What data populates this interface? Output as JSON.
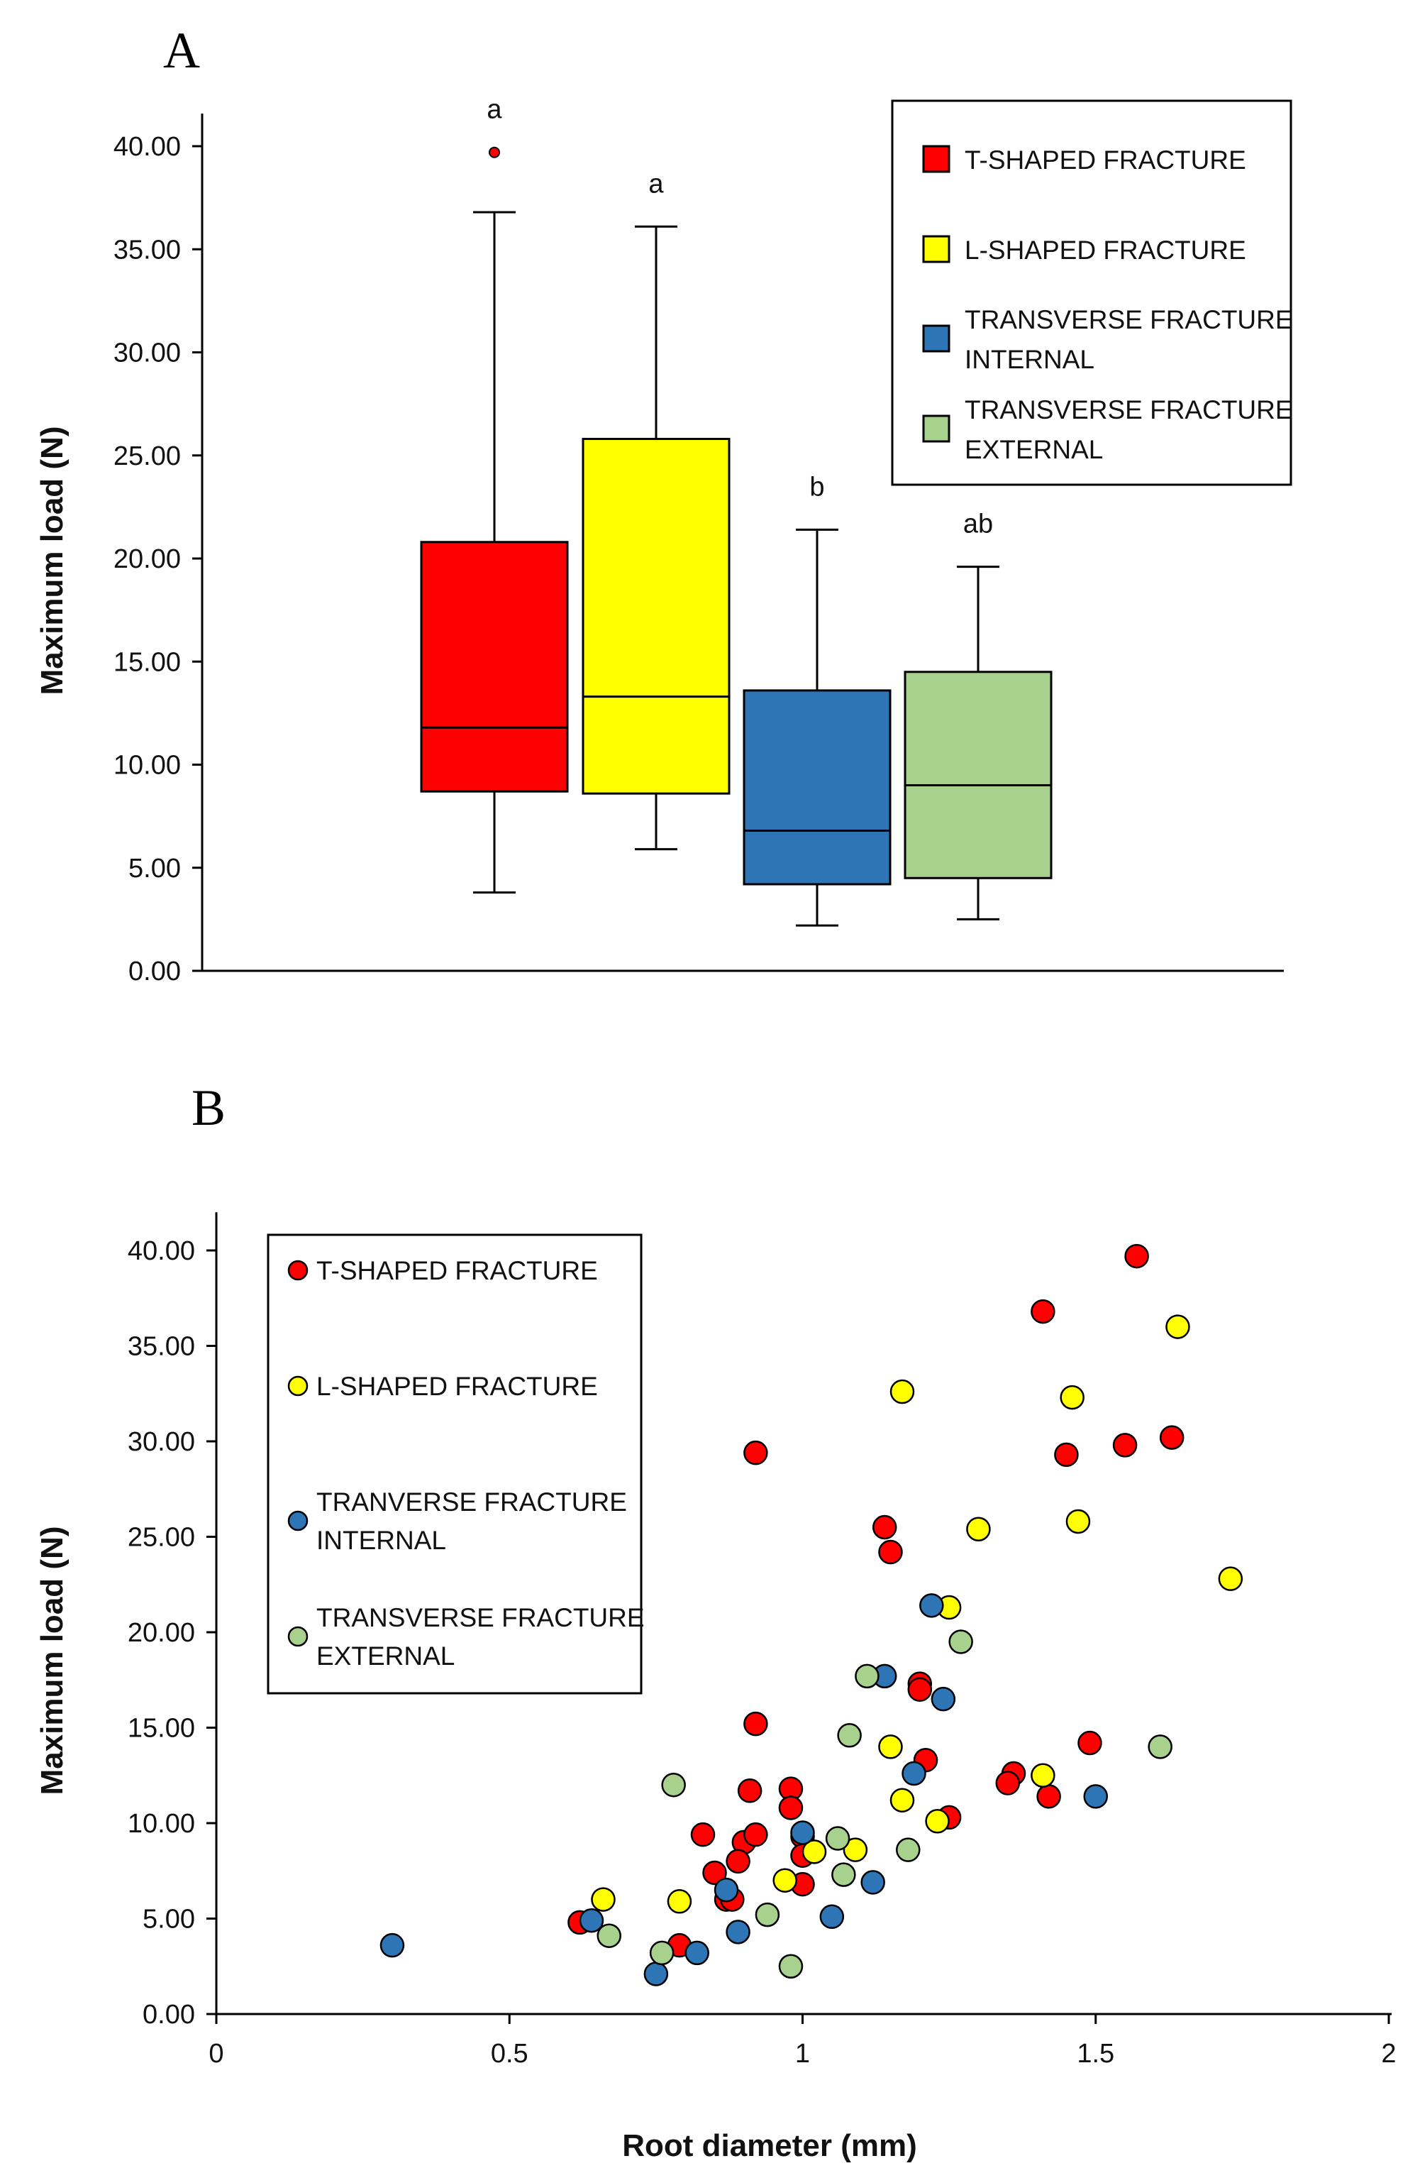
{
  "chart_data": [
    {
      "panel": "A",
      "type": "box",
      "ylabel": "Maximum load (N)",
      "ylim": [
        0,
        40
      ],
      "yticks": [
        "0.00",
        "5.00",
        "10.00",
        "15.00",
        "20.00",
        "25.00",
        "30.00",
        "35.00",
        "40.00"
      ],
      "legend_position": "top-right",
      "legend": [
        {
          "lines": [
            "T-SHAPED FRACTURE"
          ],
          "color": "#ff0000"
        },
        {
          "lines": [
            "L-SHAPED FRACTURE"
          ],
          "color": "#ffff00"
        },
        {
          "lines": [
            "TRANSVERSE FRACTURE",
            "INTERNAL"
          ],
          "color": "#2e75b6"
        },
        {
          "lines": [
            "TRANSVERSE FRACTURE",
            "EXTERNAL"
          ],
          "color": "#a9d18e"
        }
      ],
      "boxes": [
        {
          "series": "T-SHAPED FRACTURE",
          "min": 3.8,
          "q1": 8.7,
          "median": 11.8,
          "q3": 20.8,
          "max": 36.8,
          "outliers": [
            39.7
          ],
          "letter": "a",
          "color": "#ff0000"
        },
        {
          "series": "L-SHAPED FRACTURE",
          "min": 5.9,
          "q1": 8.6,
          "median": 13.3,
          "q3": 25.8,
          "max": 36.1,
          "outliers": [],
          "letter": "a",
          "color": "#ffff00"
        },
        {
          "series": "TRANSVERSE FRACTURE INTERNAL",
          "min": 2.2,
          "q1": 4.2,
          "median": 6.8,
          "q3": 13.6,
          "max": 21.4,
          "outliers": [],
          "letter": "b",
          "color": "#2e75b6"
        },
        {
          "series": "TRANSVERSE FRACTURE EXTERNAL",
          "min": 2.5,
          "q1": 4.5,
          "median": 9.0,
          "q3": 14.5,
          "max": 19.6,
          "outliers": [],
          "letter": "ab",
          "color": "#a9d18e"
        }
      ]
    },
    {
      "panel": "B",
      "type": "scatter",
      "xlabel": "Root diameter (mm)",
      "ylabel": "Maximum load (N)",
      "xlim": [
        0,
        2
      ],
      "ylim": [
        0,
        42
      ],
      "xticks": [
        "0",
        "0.5",
        "1",
        "1.5",
        "2"
      ],
      "yticks": [
        "0.00",
        "5.00",
        "10.00",
        "15.00",
        "20.00",
        "25.00",
        "30.00",
        "35.00",
        "40.00"
      ],
      "legend_position": "top-left",
      "legend": [
        {
          "lines": [
            "T-SHAPED FRACTURE"
          ],
          "color": "#ff0000"
        },
        {
          "lines": [
            "L-SHAPED FRACTURE"
          ],
          "color": "#ffff00"
        },
        {
          "lines": [
            "TRANVERSE FRACTURE",
            "INTERNAL"
          ],
          "color": "#2e75b6"
        },
        {
          "lines": [
            "TRANSVERSE FRACTURE",
            "EXTERNAL"
          ],
          "color": "#a9d18e"
        }
      ],
      "series": [
        {
          "name": "T-SHAPED FRACTURE",
          "color": "#ff0000",
          "points": [
            [
              1.57,
              39.7
            ],
            [
              1.41,
              36.8
            ],
            [
              0.92,
              29.4
            ],
            [
              1.45,
              29.3
            ],
            [
              1.55,
              29.8
            ],
            [
              1.63,
              30.2
            ],
            [
              1.14,
              25.5
            ],
            [
              1.15,
              24.2
            ],
            [
              1.2,
              17.3
            ],
            [
              1.2,
              17.0
            ],
            [
              0.92,
              15.2
            ],
            [
              1.49,
              14.2
            ],
            [
              1.21,
              13.3
            ],
            [
              1.36,
              12.6
            ],
            [
              1.35,
              12.1
            ],
            [
              1.42,
              11.4
            ],
            [
              0.91,
              11.7
            ],
            [
              0.98,
              11.8
            ],
            [
              0.98,
              10.8
            ],
            [
              1.25,
              10.3
            ],
            [
              0.83,
              9.4
            ],
            [
              0.9,
              9.0
            ],
            [
              0.92,
              9.4
            ],
            [
              1.0,
              9.3
            ],
            [
              1.0,
              8.3
            ],
            [
              0.89,
              8.0
            ],
            [
              0.85,
              7.4
            ],
            [
              0.87,
              6.0
            ],
            [
              0.88,
              6.0
            ],
            [
              1.0,
              6.8
            ],
            [
              0.62,
              4.8
            ],
            [
              0.79,
              3.6
            ]
          ]
        },
        {
          "name": "L-SHAPED FRACTURE",
          "color": "#ffff00",
          "points": [
            [
              1.64,
              36.0
            ],
            [
              1.17,
              32.6
            ],
            [
              1.46,
              32.3
            ],
            [
              1.3,
              25.4
            ],
            [
              1.47,
              25.8
            ],
            [
              1.73,
              22.8
            ],
            [
              1.25,
              21.3
            ],
            [
              1.15,
              14.0
            ],
            [
              1.41,
              12.5
            ],
            [
              1.17,
              11.2
            ],
            [
              1.23,
              10.1
            ],
            [
              1.02,
              8.5
            ],
            [
              1.09,
              8.6
            ],
            [
              0.97,
              7.0
            ],
            [
              0.66,
              6.0
            ],
            [
              0.79,
              5.9
            ]
          ]
        },
        {
          "name": "TRANVERSE FRACTURE INTERNAL",
          "color": "#2e75b6",
          "points": [
            [
              1.22,
              21.4
            ],
            [
              1.14,
              17.7
            ],
            [
              1.24,
              16.5
            ],
            [
              1.19,
              12.6
            ],
            [
              1.5,
              11.4
            ],
            [
              1.0,
              9.5
            ],
            [
              1.12,
              6.9
            ],
            [
              0.87,
              6.5
            ],
            [
              0.64,
              4.9
            ],
            [
              1.05,
              5.1
            ],
            [
              0.89,
              4.3
            ],
            [
              0.3,
              3.6
            ],
            [
              0.82,
              3.2
            ],
            [
              0.75,
              2.1
            ]
          ]
        },
        {
          "name": "TRANSVERSE FRACTURE EXTERNAL",
          "color": "#a9d18e",
          "points": [
            [
              1.27,
              19.5
            ],
            [
              1.11,
              17.7
            ],
            [
              1.08,
              14.6
            ],
            [
              1.61,
              14.0
            ],
            [
              0.78,
              12.0
            ],
            [
              1.06,
              9.2
            ],
            [
              1.07,
              7.3
            ],
            [
              1.18,
              8.6
            ],
            [
              0.94,
              5.2
            ],
            [
              0.67,
              4.1
            ],
            [
              0.76,
              3.2
            ],
            [
              0.98,
              2.5
            ]
          ]
        }
      ]
    }
  ]
}
